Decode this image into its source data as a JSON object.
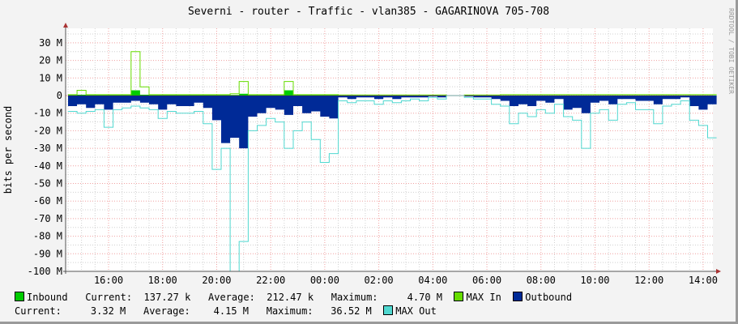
{
  "chart_data": {
    "type": "area",
    "title": "Severni - router - Traffic - vlan385 - GAGARINOVA 705-708",
    "ylabel": "bits per second",
    "watermark": "RRDTOOL / TOBI OETIKER",
    "ylim": [
      -100,
      38
    ],
    "y_ticks": [
      "30 M",
      "20 M",
      "10 M",
      "0",
      "-10 M",
      "-20 M",
      "-30 M",
      "-40 M",
      "-50 M",
      "-60 M",
      "-70 M",
      "-80 M",
      "-90 M",
      "-100 M"
    ],
    "y_tick_values": [
      30,
      20,
      10,
      0,
      -10,
      -20,
      -30,
      -40,
      -50,
      -60,
      -70,
      -80,
      -90,
      -100
    ],
    "x_ticks": [
      "16:00",
      "18:00",
      "20:00",
      "22:00",
      "00:00",
      "02:00",
      "04:00",
      "06:00",
      "08:00",
      "10:00",
      "12:00",
      "14:00"
    ],
    "grid": true,
    "x_start": "14:30",
    "x_step_minutes": 20,
    "series": [
      {
        "name": "Inbound",
        "color": "#00cc00",
        "kind": "area",
        "values": [
          0.3,
          0.5,
          0.3,
          0.3,
          0.3,
          0.3,
          0.3,
          3,
          0.5,
          0.3,
          0.3,
          0.3,
          0.3,
          0.3,
          0.3,
          0.3,
          0.3,
          0.3,
          0.3,
          1,
          0.3,
          0.3,
          0.3,
          0.3,
          3,
          0.3,
          0.3,
          0.3,
          0.3,
          0.3,
          0.1,
          0.1,
          0.1,
          0.1,
          0.1,
          0.1,
          0.1,
          0.1,
          0.1,
          0.1,
          0.1,
          0.1,
          0,
          0,
          0.1,
          0.1,
          0.1,
          0.1,
          0.1,
          0.1,
          0.1,
          0.1,
          0.1,
          0.1,
          0.1,
          0.1,
          0.1,
          0.1,
          0.1,
          0.1,
          0.1,
          0.1,
          0.1,
          0.1,
          0.1,
          0.1,
          0.1,
          0.1,
          0.1,
          0.1,
          0.1,
          0.1
        ]
      },
      {
        "name": "MAX In",
        "color": "#66dd00",
        "kind": "line",
        "values": [
          0.5,
          3,
          0.5,
          0.5,
          0.5,
          0.5,
          0.5,
          25,
          5,
          0.5,
          0.5,
          0.5,
          0.5,
          0.5,
          0.5,
          0.5,
          0.5,
          0.5,
          1,
          8,
          0.5,
          0.5,
          0.5,
          0.5,
          8,
          0.5,
          0.5,
          0.5,
          0.5,
          0.5,
          0.3,
          0.3,
          0.3,
          0.3,
          0.3,
          0.3,
          0.3,
          0.3,
          0.3,
          0.3,
          0.3,
          0.3,
          0,
          0,
          0.3,
          0.3,
          0.3,
          0.3,
          0.5,
          0.5,
          0.5,
          0.5,
          0.5,
          0.5,
          0.5,
          0.5,
          0.5,
          0.5,
          0.5,
          0.5,
          0.5,
          0.5,
          0.5,
          0.5,
          0.5,
          0.5,
          0.5,
          0.5,
          0.5,
          0.5,
          0.5,
          0.5
        ]
      },
      {
        "name": "Outbound",
        "color": "#002a97",
        "kind": "area",
        "values": [
          -6,
          -5,
          -7,
          -5,
          -8,
          -4,
          -4,
          -3,
          -4,
          -5,
          -8,
          -5,
          -6,
          -6,
          -4,
          -7,
          -14,
          -27,
          -24,
          -30,
          -12,
          -10,
          -7,
          -8,
          -11,
          -6,
          -10,
          -9,
          -12,
          -13,
          -1,
          -2,
          -1,
          -1,
          -2,
          -1,
          -2,
          -1,
          -1,
          -1,
          -0.5,
          -1,
          0,
          0,
          -0.5,
          -1,
          -1,
          -2,
          -3,
          -6,
          -5,
          -6,
          -3,
          -4,
          -2,
          -8,
          -7,
          -10,
          -4,
          -3,
          -5,
          -2,
          -2,
          -3,
          -3,
          -5,
          -2,
          -2,
          -1,
          -6,
          -8,
          -5
        ]
      },
      {
        "name": "MAX Out",
        "color": "#50d8d0",
        "kind": "line",
        "values": [
          -9,
          -10,
          -9,
          -8,
          -18,
          -8,
          -7,
          -6,
          -7,
          -8,
          -13,
          -9,
          -10,
          -10,
          -9,
          -16,
          -42,
          -30,
          -100,
          -83,
          -20,
          -17,
          -13,
          -15,
          -30,
          -20,
          -15,
          -25,
          -38,
          -33,
          -3,
          -4,
          -3,
          -3,
          -5,
          -3,
          -4,
          -3,
          -2,
          -3,
          -1,
          -2,
          0,
          0,
          -1,
          -2,
          -2,
          -5,
          -6,
          -16,
          -10,
          -12,
          -8,
          -10,
          -5,
          -12,
          -14,
          -30,
          -10,
          -8,
          -14,
          -5,
          -4,
          -8,
          -8,
          -16,
          -6,
          -5,
          -3,
          -14,
          -17,
          -24
        ]
      }
    ]
  },
  "legend": {
    "inbound": {
      "label": "Inbound",
      "current_label": "Current:",
      "current": "137.27 k",
      "average_label": "Average:",
      "average": "212.47 k",
      "maximum_label": "Maximum:",
      "maximum": "4.70 M"
    },
    "max_in": "MAX In",
    "outbound": {
      "label": "Outbound",
      "current_label": "Current:",
      "current": "3.32 M",
      "average_label": "Average:",
      "average": "4.15 M",
      "maximum_label": "Maximum:",
      "maximum": "36.52 M"
    },
    "max_out": "MAX Out"
  }
}
